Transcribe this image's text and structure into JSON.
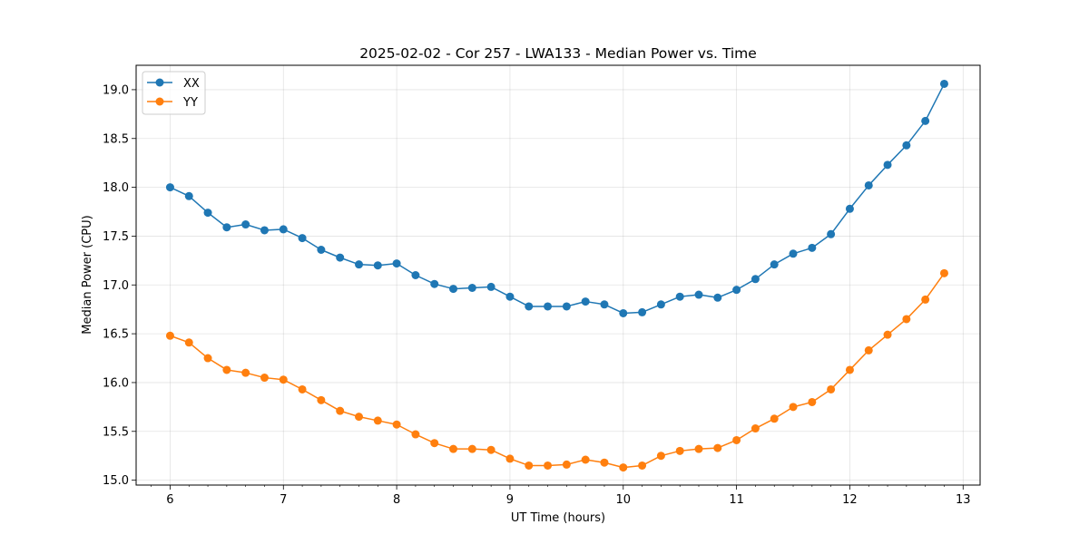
{
  "chart_data": {
    "type": "line",
    "title": "2025-02-02 - Cor 257 - LWA133 - Median Power vs. Time",
    "xlabel": "UT Time (hours)",
    "ylabel": "Median Power (CPU)",
    "xlim": [
      5.7,
      13.15
    ],
    "ylim": [
      14.95,
      19.25
    ],
    "xticks": [
      6,
      7,
      8,
      9,
      10,
      11,
      12,
      13
    ],
    "xtick_labels": [
      "6",
      "7",
      "8",
      "9",
      "10",
      "11",
      "12",
      "13"
    ],
    "yticks": [
      15.0,
      15.5,
      16.0,
      16.5,
      17.0,
      17.5,
      18.0,
      18.5,
      19.0
    ],
    "ytick_labels": [
      "15.0",
      "15.5",
      "16.0",
      "16.5",
      "17.0",
      "17.5",
      "18.0",
      "18.5",
      "19.0"
    ],
    "grid": true,
    "legend_position": "top-left",
    "x": [
      6.0,
      6.1667,
      6.3333,
      6.5,
      6.6667,
      6.8333,
      7.0,
      7.1667,
      7.3333,
      7.5,
      7.6667,
      7.8333,
      8.0,
      8.1667,
      8.3333,
      8.5,
      8.6667,
      8.8333,
      9.0,
      9.1667,
      9.3333,
      9.5,
      9.6667,
      9.8333,
      10.0,
      10.1667,
      10.3333,
      10.5,
      10.6667,
      10.8333,
      11.0,
      11.1667,
      11.3333,
      11.5,
      11.6667,
      11.8333,
      12.0,
      12.1667,
      12.3333,
      12.5,
      12.6667,
      12.8333
    ],
    "series": [
      {
        "name": "XX",
        "color": "#1f77b4",
        "values": [
          18.0,
          17.91,
          17.74,
          17.59,
          17.62,
          17.56,
          17.57,
          17.48,
          17.36,
          17.28,
          17.21,
          17.2,
          17.22,
          17.1,
          17.01,
          16.96,
          16.97,
          16.98,
          16.88,
          16.78,
          16.78,
          16.78,
          16.83,
          16.8,
          16.71,
          16.72,
          16.8,
          16.88,
          16.9,
          16.87,
          16.95,
          17.06,
          17.21,
          17.32,
          17.38,
          17.52,
          17.78,
          18.02,
          18.23,
          18.43,
          18.68,
          19.06
        ]
      },
      {
        "name": "YY",
        "color": "#ff7f0e",
        "values": [
          16.48,
          16.41,
          16.25,
          16.13,
          16.1,
          16.05,
          16.03,
          15.93,
          15.82,
          15.71,
          15.65,
          15.61,
          15.57,
          15.47,
          15.38,
          15.32,
          15.32,
          15.31,
          15.22,
          15.15,
          15.15,
          15.16,
          15.21,
          15.18,
          15.13,
          15.15,
          15.25,
          15.3,
          15.32,
          15.33,
          15.41,
          15.53,
          15.63,
          15.75,
          15.8,
          15.93,
          16.13,
          16.33,
          16.49,
          16.65,
          16.85,
          17.12
        ]
      }
    ]
  }
}
